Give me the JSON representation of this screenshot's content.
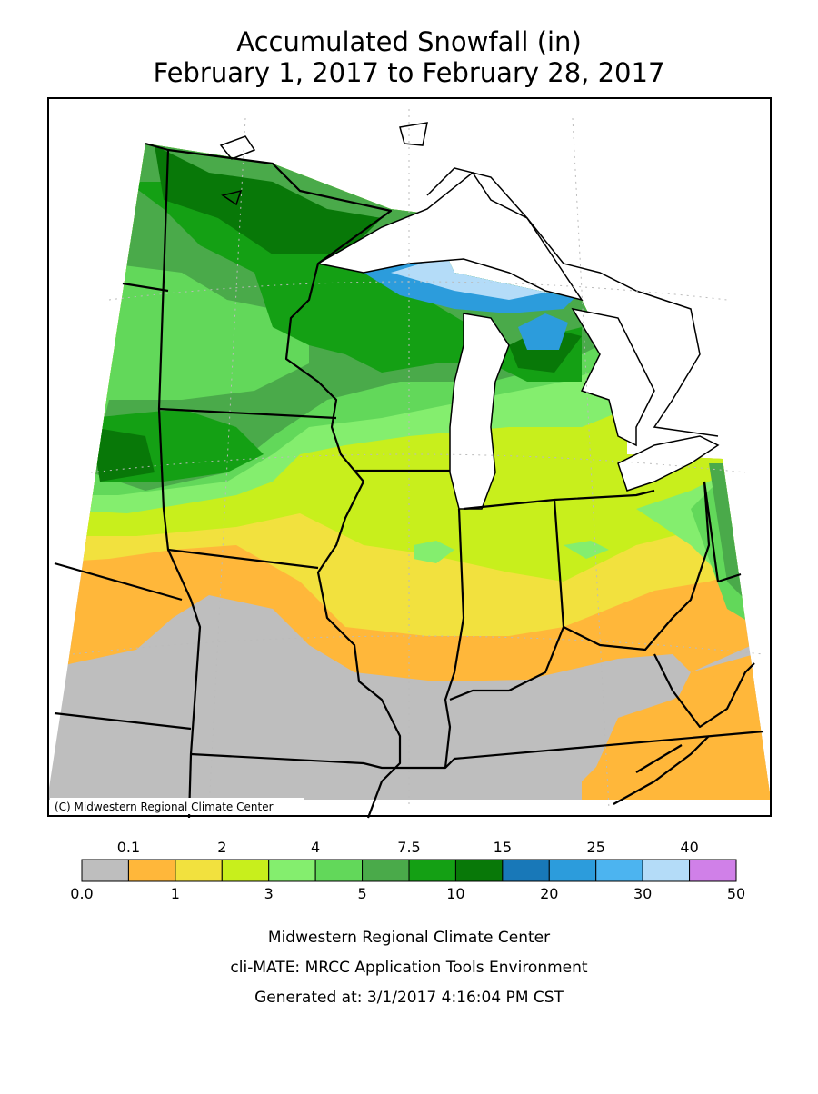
{
  "header": {
    "title": "Accumulated Snowfall (in)",
    "subtitle": "February 1, 2017 to February 28, 2017"
  },
  "map": {
    "credit": "(C) Midwestern Regional Climate Center"
  },
  "legend": {
    "boundaries": [
      {
        "value": 0,
        "label": "0.0"
      },
      0.1,
      1,
      2,
      3,
      4,
      5,
      7.5,
      10,
      15,
      20,
      25,
      30,
      40,
      50
    ],
    "colors": [
      "#bebebe",
      "#ffb73a",
      "#f2e13e",
      "#c8ef1c",
      "#84ee6e",
      "#62d85a",
      "#4aaa4a",
      "#14a014",
      "#087808",
      "#1878b8",
      "#2c9cdc",
      "#4cb4f0",
      "#b4dcf8",
      "#d080e8"
    ]
  },
  "footer": {
    "lines": [
      "Midwestern Regional Climate Center",
      "cli-MATE: MRCC Application Tools Environment",
      "Generated at: 3/1/2017 4:16:04 PM CST"
    ]
  }
}
